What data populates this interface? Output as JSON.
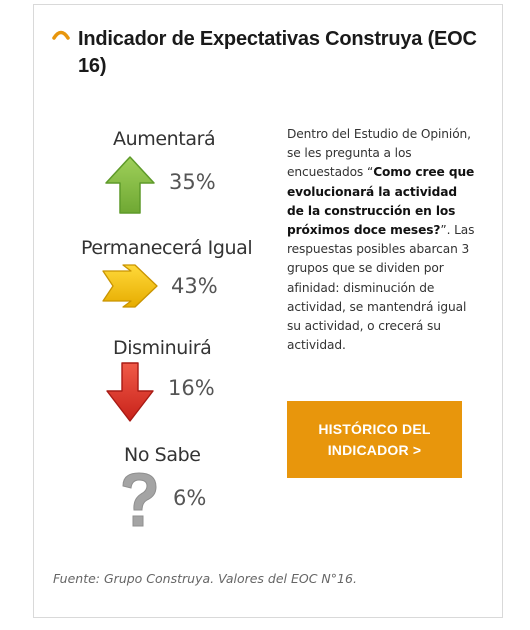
{
  "title": "Indicador de Expectativas Construya (EOC 16)",
  "items": [
    {
      "label": "Aumentará",
      "value": "35%",
      "icon": "arrow-up-icon",
      "color": "#8cc04b"
    },
    {
      "label": "Permanecerá Igual",
      "value": "43%",
      "icon": "arrow-right-icon",
      "color": "#f2c413"
    },
    {
      "label": "Disminuirá",
      "value": "16%",
      "icon": "arrow-down-icon",
      "color": "#e03a2b"
    },
    {
      "label": "No Sabe",
      "value": "6%",
      "icon": "question-mark-icon",
      "color": "#a8a8a8"
    }
  ],
  "description": {
    "intro": "Dentro del Estudio de Opinión, se les pregunta a los encuestados “",
    "question": "Como cree que evolucionará la actividad de la construcción en los próximos doce meses?",
    "outro": "”. Las respuestas posibles abarcan 3 grupos que se dividen por afinidad: disminución de actividad, se mantendrá igual su actividad, o crecerá su actividad."
  },
  "button": {
    "line1": "HISTÓRICO DEL",
    "line2": "INDICADOR >",
    "color": "#e8960c"
  },
  "footer": "Fuente: Grupo Construya. Valores del EOC N°16.",
  "accent_color": "#e8960c"
}
